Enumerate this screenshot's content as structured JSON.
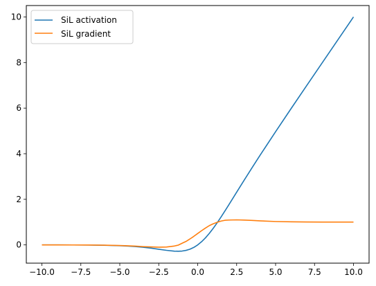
{
  "chart_data": {
    "type": "line",
    "title": "",
    "xlabel": "",
    "ylabel": "",
    "xlim": [
      -11.0,
      11.0
    ],
    "ylim": [
      -0.8,
      10.5
    ],
    "x_ticks": [
      -10.0,
      -7.5,
      -5.0,
      -2.5,
      0.0,
      2.5,
      5.0,
      7.5,
      10.0
    ],
    "x_tick_labels": [
      "−10.0",
      "−7.5",
      "−5.0",
      "−2.5",
      "0.0",
      "2.5",
      "5.0",
      "7.5",
      "10.0"
    ],
    "y_ticks": [
      0,
      2,
      4,
      6,
      8,
      10
    ],
    "y_tick_labels": [
      "0",
      "2",
      "4",
      "6",
      "8",
      "10"
    ],
    "grid": false,
    "legend_position": "top-left",
    "x": [
      -10,
      -9,
      -8,
      -7,
      -6,
      -5,
      -4.5,
      -4,
      -3.5,
      -3,
      -2.5,
      -2,
      -1.5,
      -1.25,
      -1,
      -0.75,
      -0.5,
      -0.25,
      0,
      0.25,
      0.5,
      0.75,
      1,
      1.25,
      1.5,
      1.75,
      2,
      2.5,
      3,
      3.5,
      4,
      5,
      6,
      7,
      8,
      9,
      10
    ],
    "series": [
      {
        "name": "SiL activation",
        "color": "#1f77b4",
        "values": [
          -0.0005,
          -0.0011,
          -0.0027,
          -0.0064,
          -0.0148,
          -0.0335,
          -0.0492,
          -0.0719,
          -0.1041,
          -0.1423,
          -0.1893,
          -0.2384,
          -0.2736,
          -0.2781,
          -0.2689,
          -0.2399,
          -0.1888,
          -0.1094,
          0.0,
          0.1406,
          0.3112,
          0.5102,
          0.7311,
          0.9719,
          1.2263,
          1.4925,
          1.7616,
          2.3106,
          2.8577,
          3.3977,
          3.9281,
          4.9665,
          5.9852,
          6.9936,
          7.9973,
          8.9989,
          9.9995
        ]
      },
      {
        "name": "SiL gradient",
        "color": "#ff7f0e",
        "values": [
          -0.0004,
          -0.001,
          -0.0024,
          -0.0055,
          -0.0123,
          -0.0266,
          -0.0383,
          -0.0541,
          -0.0746,
          -0.0881,
          -0.0982,
          -0.0908,
          -0.0492,
          -0.0092,
          0.0723,
          0.1525,
          0.26,
          0.3762,
          0.5,
          0.6238,
          0.74,
          0.8475,
          0.9277,
          0.9906,
          1.0452,
          1.0803,
          1.0908,
          1.0983,
          1.0881,
          1.0746,
          1.0541,
          1.0266,
          1.0123,
          1.0055,
          1.0024,
          1.001,
          1.0004
        ]
      }
    ]
  },
  "legend": {
    "items": [
      {
        "label": "SiL activation",
        "color": "#1f77b4"
      },
      {
        "label": "SiL gradient",
        "color": "#ff7f0e"
      }
    ]
  }
}
